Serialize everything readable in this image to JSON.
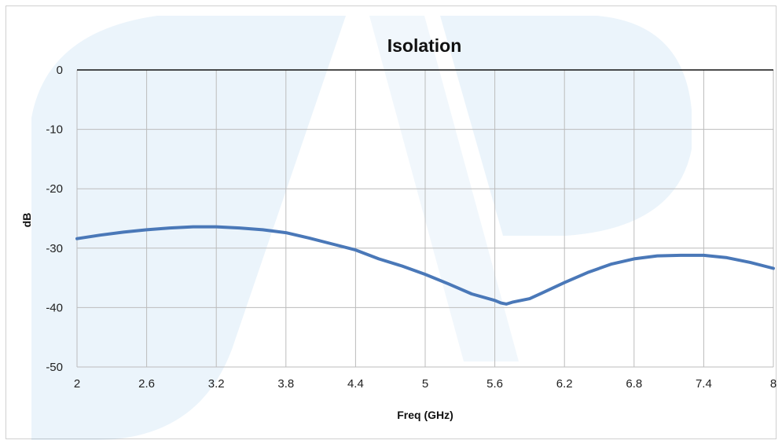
{
  "chart_data": {
    "type": "line",
    "title": "Isolation",
    "xlabel": "Freq (GHz)",
    "ylabel": "dB",
    "xlim": [
      2,
      8
    ],
    "ylim": [
      -50,
      0
    ],
    "x_ticks": [
      "2",
      "2.6",
      "3.2",
      "3.8",
      "4.4",
      "5",
      "5.6",
      "6.2",
      "6.8",
      "7.4",
      "8"
    ],
    "y_ticks": [
      "0",
      "-10",
      "-20",
      "-30",
      "-40",
      "-50"
    ],
    "grid": true,
    "legend": "none",
    "series": [
      {
        "color": "#4a78b8",
        "x": [
          2.0,
          2.2,
          2.4,
          2.6,
          2.8,
          3.0,
          3.2,
          3.4,
          3.6,
          3.8,
          4.0,
          4.2,
          4.4,
          4.6,
          4.8,
          5.0,
          5.2,
          5.4,
          5.6,
          5.65,
          5.7,
          5.75,
          5.8,
          5.9,
          6.0,
          6.2,
          6.4,
          6.6,
          6.8,
          7.0,
          7.2,
          7.4,
          7.6,
          7.8,
          8.0
        ],
        "values": [
          -28.4,
          -27.8,
          -27.3,
          -26.9,
          -26.6,
          -26.4,
          -26.4,
          -26.6,
          -26.9,
          -27.4,
          -28.3,
          -29.3,
          -30.3,
          -31.8,
          -33.0,
          -34.4,
          -36.0,
          -37.7,
          -38.8,
          -39.2,
          -39.4,
          -39.1,
          -38.9,
          -38.5,
          -37.6,
          -35.8,
          -34.1,
          -32.7,
          -31.8,
          -31.3,
          -31.2,
          -31.2,
          -31.6,
          -32.4,
          -33.4
        ]
      }
    ]
  }
}
